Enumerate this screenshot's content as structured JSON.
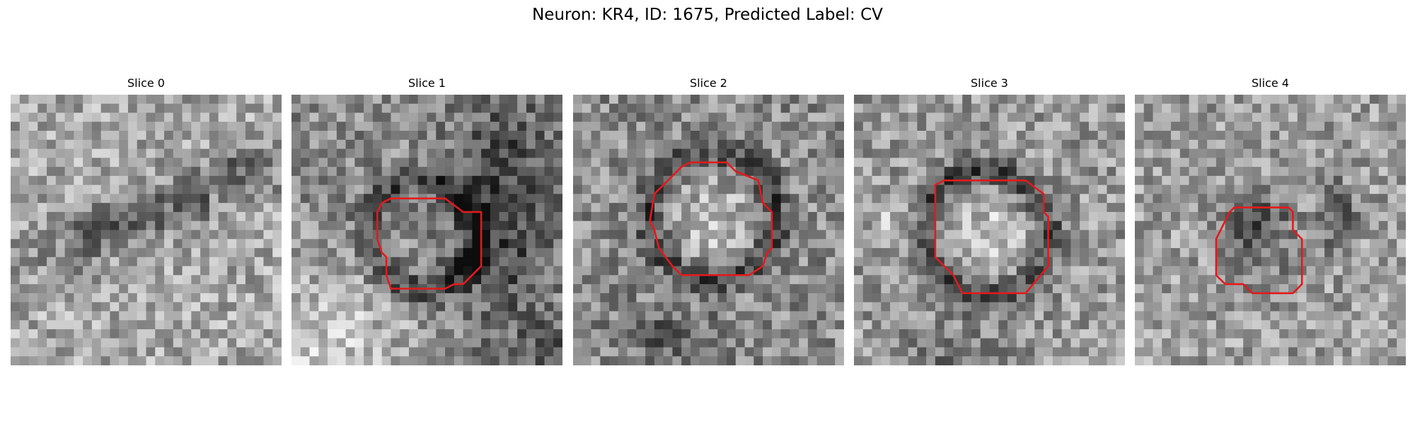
{
  "figure": {
    "title": "Neuron: KR4, ID: 1675, Predicted Label: CV"
  },
  "panels": [
    {
      "title": "Slice 0",
      "has_contour": false,
      "contour_color": "#e31a1c"
    },
    {
      "title": "Slice 1",
      "has_contour": true,
      "contour_color": "#e31a1c"
    },
    {
      "title": "Slice 2",
      "has_contour": true,
      "contour_color": "#e31a1c"
    },
    {
      "title": "Slice 3",
      "has_contour": true,
      "contour_color": "#e31a1c"
    },
    {
      "title": "Slice 4",
      "has_contour": true,
      "contour_color": "#e31a1c"
    }
  ],
  "colormap": "gray"
}
